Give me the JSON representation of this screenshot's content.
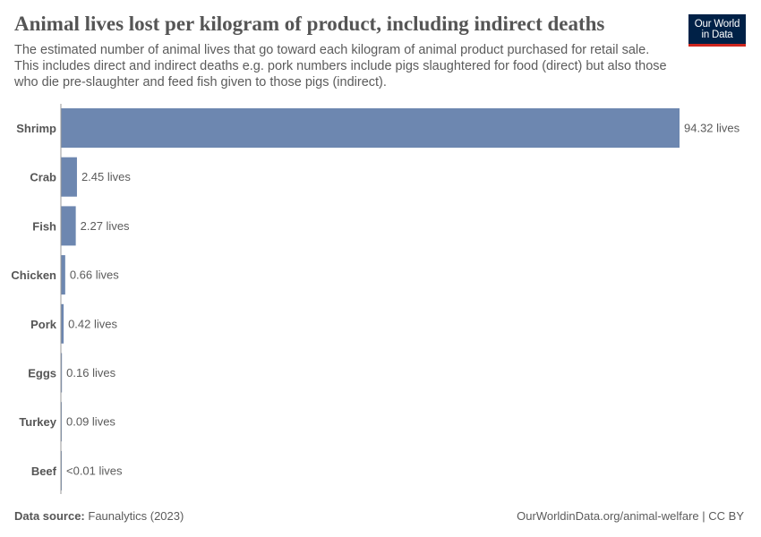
{
  "header": {
    "title": "Animal lives lost per kilogram of product, including indirect deaths",
    "subtitle": "The estimated number of animal lives that go toward each kilogram of animal product purchased for retail sale. This includes direct and indirect deaths e.g. pork numbers include pigs slaughtered for food (direct) but also those who die pre-slaughter and feed fish given to those pigs (indirect).",
    "logo_line1": "Our World",
    "logo_line2": "in Data"
  },
  "footer": {
    "source_label": "Data source:",
    "source_value": "Faunalytics (2023)",
    "credit": "OurWorldinData.org/animal-welfare | CC BY"
  },
  "colors": {
    "bar": "#6d87b0",
    "axis": "#999999",
    "logo_bg": "#002147",
    "logo_accent": "#ce261e"
  },
  "chart_data": {
    "type": "bar",
    "orientation": "horizontal",
    "title": "Animal lives lost per kilogram of product, including indirect deaths",
    "categories": [
      "Shrimp",
      "Crab",
      "Fish",
      "Chicken",
      "Pork",
      "Eggs",
      "Turkey",
      "Beef"
    ],
    "values": [
      94.32,
      2.45,
      2.27,
      0.66,
      0.42,
      0.16,
      0.09,
      0.005
    ],
    "value_labels": [
      "94.32 lives",
      "2.45 lives",
      "2.27 lives",
      "0.66 lives",
      "0.42 lives",
      "0.16 lives",
      "0.09 lives",
      "<0.01 lives"
    ],
    "xlim": [
      0,
      94.32
    ],
    "grid": false,
    "legend": "none"
  }
}
